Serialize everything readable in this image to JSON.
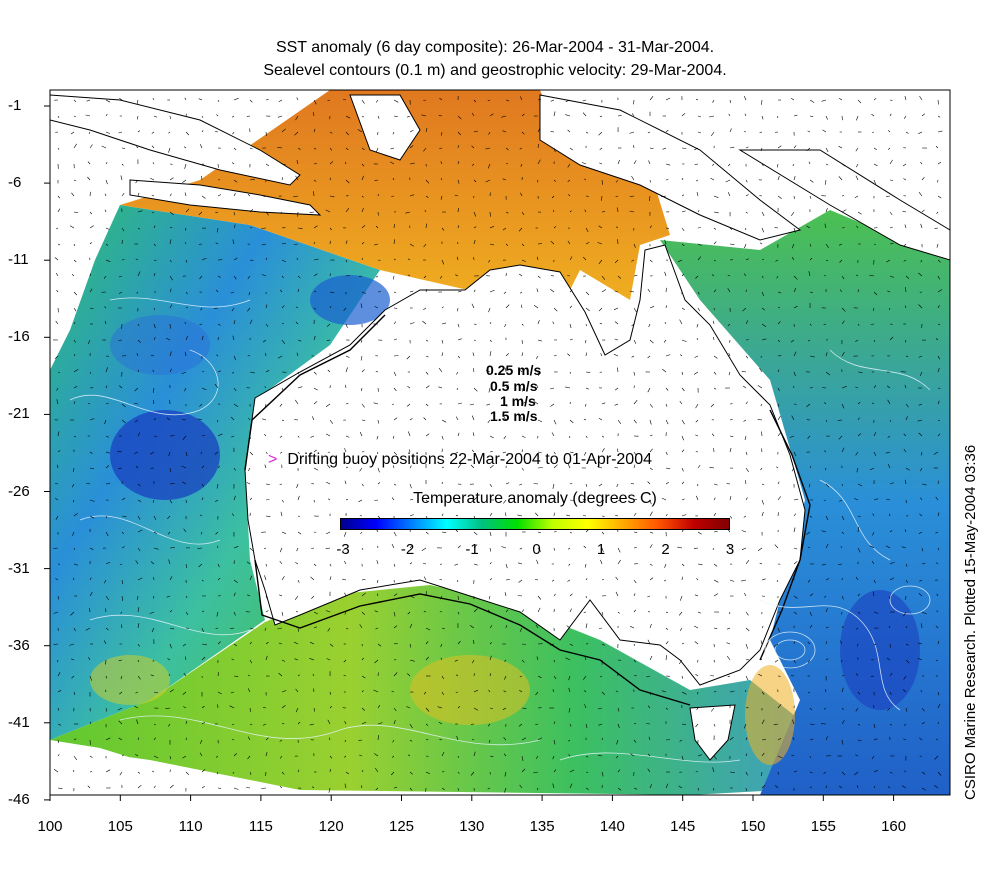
{
  "title_line1": "SST anomaly (6 day composite): 26-Mar-2004 - 31-Mar-2004.",
  "title_line2": "Sealevel contours (0.1 m) and geostrophic velocity: 29-Mar-2004.",
  "credit": "CSIRO Marine Research. Plotted 15-May-2004 03:36",
  "lat_ticks": [
    "-1",
    "-6",
    "-11",
    "-16",
    "-21",
    "-26",
    "-31",
    "-36",
    "-41",
    "-46"
  ],
  "lon_ticks": [
    "100",
    "105",
    "110",
    "115",
    "120",
    "125",
    "130",
    "135",
    "140",
    "145",
    "150",
    "155",
    "160"
  ],
  "velocity_legend": [
    "0.25 m/s",
    "0.5 m/s",
    "1 m/s",
    "1.5 m/s"
  ],
  "buoy_legend": "Drifting buoy positions 22-Mar-2004 to 01-Apr-2004",
  "buoy_marker": ">",
  "colorbar": {
    "title": "Temperature anomaly (degrees C)",
    "ticks": [
      "-3",
      "-2",
      "-1",
      "0",
      "1",
      "2",
      "3"
    ],
    "range": [
      -3,
      3
    ],
    "colors": [
      "#00008f",
      "#0000ff",
      "#007fff",
      "#00ffff",
      "#00c080",
      "#00e000",
      "#c0ff00",
      "#ffff00",
      "#ffaa00",
      "#ff5500",
      "#c00000",
      "#800000"
    ]
  },
  "map_extent": {
    "lon": [
      100,
      164
    ],
    "lat": [
      -46,
      0
    ]
  },
  "colors": {
    "land": "#ffffff",
    "buoy": "#e020e0",
    "ocean_cool": "#2a8fd8",
    "ocean_neutral": "#3cc060",
    "ocean_warm": "#f0a020"
  }
}
